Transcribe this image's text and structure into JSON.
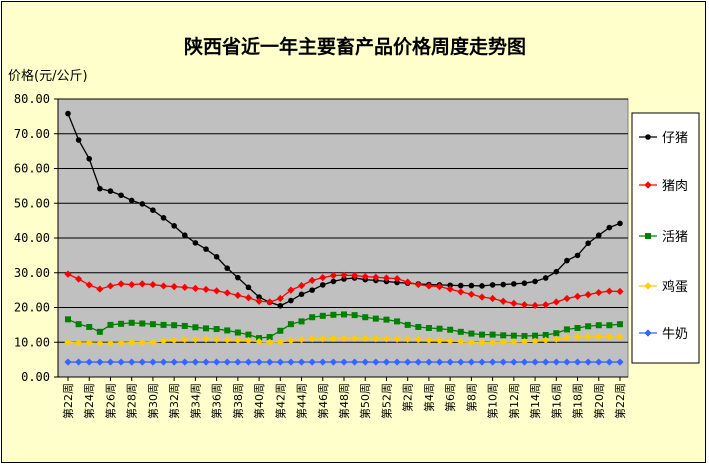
{
  "chart_data": {
    "type": "line",
    "title": "陕西省近一年主要畜产品价格周度走势图",
    "ylabel": "价格(元/公斤)",
    "xlabel": "",
    "ylim": [
      0,
      80
    ],
    "yticks": [
      "0.00",
      "10.00",
      "20.00",
      "30.00",
      "40.00",
      "50.00",
      "60.00",
      "70.00",
      "80.00"
    ],
    "legend_position": "right",
    "plot_background": "#c0c0c0",
    "x": [
      "第22周",
      "第23周",
      "第24周",
      "第25周",
      "第26周",
      "第27周",
      "第28周",
      "第29周",
      "第30周",
      "第31周",
      "第32周",
      "第33周",
      "第34周",
      "第35周",
      "第36周",
      "第37周",
      "第38周",
      "第39周",
      "第40周",
      "第41周",
      "第42周",
      "第43周",
      "第44周",
      "第45周",
      "第46周",
      "第47周",
      "第48周",
      "第49周",
      "第50周",
      "第51周",
      "第52周",
      "第1周",
      "第2周",
      "第3周",
      "第4周",
      "第5周",
      "第6周",
      "第7周",
      "第8周",
      "第9周",
      "第10周",
      "第11周",
      "第12周",
      "第13周",
      "第14周",
      "第15周",
      "第16周",
      "第17周",
      "第18周",
      "第19周",
      "第20周",
      "第21周",
      "第22周"
    ],
    "x_tick_labels": [
      "第22周",
      "第24周",
      "第26周",
      "第28周",
      "第30周",
      "第32周",
      "第34周",
      "第36周",
      "第38周",
      "第40周",
      "第42周",
      "第44周",
      "第46周",
      "第48周",
      "第50周",
      "第52周",
      "第2周",
      "第4周",
      "第6周",
      "第8周",
      "第10周",
      "第12周",
      "第14周",
      "第16周",
      "第18周",
      "第20周",
      "第22周"
    ],
    "series": [
      {
        "name": "仔猪",
        "color": "#000000",
        "marker": "circle",
        "values": [
          75.8,
          68.2,
          62.8,
          54.2,
          53.5,
          52.3,
          50.8,
          49.8,
          48.0,
          45.8,
          43.5,
          40.8,
          38.6,
          36.8,
          34.6,
          31.3,
          28.6,
          25.8,
          23.0,
          21.5,
          20.5,
          22.0,
          23.8,
          25.0,
          26.5,
          27.5,
          28.2,
          28.5,
          28.0,
          27.8,
          27.5,
          27.2,
          27.0,
          26.8,
          26.6,
          26.5,
          26.4,
          26.3,
          26.3,
          26.2,
          26.5,
          26.6,
          26.8,
          27.0,
          27.5,
          28.5,
          30.3,
          33.5,
          35.0,
          38.5,
          40.8,
          43.0,
          44.2
        ]
      },
      {
        "name": "猪肉",
        "color": "#ff0000",
        "marker": "diamond",
        "values": [
          29.6,
          28.2,
          26.5,
          25.3,
          26.2,
          26.8,
          26.6,
          26.8,
          26.6,
          26.2,
          26.0,
          25.8,
          25.5,
          25.2,
          24.8,
          24.2,
          23.5,
          22.8,
          21.8,
          21.6,
          22.6,
          25.0,
          26.3,
          27.8,
          28.6,
          29.2,
          29.3,
          29.2,
          28.9,
          28.7,
          28.5,
          28.3,
          27.3,
          26.6,
          26.2,
          26.0,
          25.3,
          24.5,
          23.8,
          23.0,
          22.6,
          21.8,
          21.2,
          20.8,
          20.6,
          20.8,
          21.6,
          22.6,
          23.2,
          23.7,
          24.3,
          24.7,
          24.6
        ]
      },
      {
        "name": "活猪",
        "color": "#008000",
        "marker": "square",
        "values": [
          16.6,
          15.2,
          14.4,
          13.0,
          15.0,
          15.3,
          15.6,
          15.4,
          15.2,
          15.0,
          14.9,
          14.7,
          14.3,
          14.0,
          13.8,
          13.4,
          12.8,
          12.2,
          11.2,
          11.5,
          13.3,
          15.2,
          16.0,
          17.2,
          17.6,
          17.9,
          18.0,
          17.8,
          17.2,
          16.8,
          16.5,
          16.0,
          15.0,
          14.4,
          14.1,
          13.9,
          13.6,
          13.0,
          12.5,
          12.2,
          12.2,
          12.0,
          11.9,
          11.8,
          11.9,
          12.1,
          12.6,
          13.7,
          14.1,
          14.6,
          14.9,
          14.9,
          15.2
        ]
      },
      {
        "name": "鸡蛋",
        "color": "#ffcc00",
        "marker": "diamond",
        "values": [
          10.0,
          9.8,
          9.8,
          9.7,
          9.7,
          9.8,
          9.9,
          9.9,
          10.0,
          10.4,
          10.6,
          10.8,
          10.8,
          10.9,
          10.8,
          10.7,
          10.6,
          10.5,
          10.2,
          10.0,
          10.1,
          10.5,
          10.8,
          11.0,
          11.0,
          11.1,
          11.1,
          11.1,
          11.1,
          11.0,
          11.0,
          10.9,
          10.9,
          10.8,
          10.6,
          10.5,
          10.4,
          10.2,
          9.9,
          9.9,
          9.9,
          10.0,
          10.1,
          10.2,
          10.3,
          10.6,
          10.9,
          11.3,
          11.5,
          11.6,
          11.6,
          11.6,
          11.5
        ]
      },
      {
        "name": "牛奶",
        "color": "#3366ff",
        "marker": "diamond",
        "values": [
          4.3,
          4.3,
          4.3,
          4.3,
          4.3,
          4.3,
          4.3,
          4.3,
          4.3,
          4.3,
          4.3,
          4.3,
          4.3,
          4.3,
          4.3,
          4.3,
          4.3,
          4.3,
          4.3,
          4.3,
          4.3,
          4.3,
          4.3,
          4.3,
          4.3,
          4.3,
          4.3,
          4.3,
          4.3,
          4.3,
          4.3,
          4.3,
          4.3,
          4.3,
          4.3,
          4.3,
          4.3,
          4.3,
          4.3,
          4.3,
          4.3,
          4.3,
          4.3,
          4.3,
          4.3,
          4.3,
          4.3,
          4.3,
          4.3,
          4.3,
          4.3,
          4.3,
          4.3
        ]
      }
    ]
  }
}
